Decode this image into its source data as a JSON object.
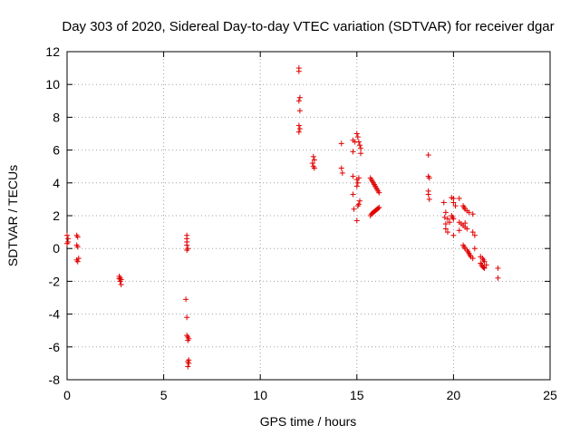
{
  "chart_data": {
    "type": "scatter",
    "title": "Day 303 of 2020, Sidereal Day-to-day VTEC variation (SDTVAR) for receiver dgar",
    "xlabel": "GPS time / hours",
    "ylabel": "SDTVAR / TECUs",
    "xlim": [
      0,
      25
    ],
    "ylim": [
      -8,
      12
    ],
    "xticks": [
      0,
      5,
      10,
      15,
      20,
      25
    ],
    "yticks": [
      -8,
      -6,
      -4,
      -2,
      0,
      2,
      4,
      6,
      8,
      10,
      12
    ],
    "grid": true,
    "marker": "+",
    "color": "#e00000",
    "series": [
      {
        "name": "dgar",
        "points": [
          [
            0.0,
            0.8
          ],
          [
            0.05,
            0.6
          ],
          [
            0.05,
            0.4
          ],
          [
            0.0,
            0.3
          ],
          [
            0.5,
            0.8
          ],
          [
            0.55,
            0.7
          ],
          [
            0.5,
            0.2
          ],
          [
            0.55,
            0.1
          ],
          [
            0.5,
            -0.7
          ],
          [
            0.55,
            -0.8
          ],
          [
            0.6,
            -0.6
          ],
          [
            2.7,
            -1.7
          ],
          [
            2.75,
            -1.8
          ],
          [
            2.8,
            -1.9
          ],
          [
            2.75,
            -2.0
          ],
          [
            2.8,
            -2.2
          ],
          [
            2.7,
            -1.85
          ],
          [
            6.2,
            0.8
          ],
          [
            6.2,
            0.6
          ],
          [
            6.2,
            0.4
          ],
          [
            6.2,
            0.2
          ],
          [
            6.25,
            0.0
          ],
          [
            6.2,
            -0.1
          ],
          [
            6.15,
            -3.1
          ],
          [
            6.2,
            -4.2
          ],
          [
            6.2,
            -5.3
          ],
          [
            6.25,
            -5.4
          ],
          [
            6.3,
            -5.5
          ],
          [
            6.25,
            -5.6
          ],
          [
            6.3,
            -6.8
          ],
          [
            6.25,
            -6.9
          ],
          [
            6.3,
            -7.0
          ],
          [
            6.25,
            -7.2
          ],
          [
            12.0,
            11.0
          ],
          [
            12.0,
            10.8
          ],
          [
            12.05,
            9.2
          ],
          [
            12.0,
            9.0
          ],
          [
            12.05,
            8.4
          ],
          [
            12.0,
            7.5
          ],
          [
            12.05,
            7.3
          ],
          [
            12.0,
            7.1
          ],
          [
            12.75,
            5.6
          ],
          [
            12.8,
            5.4
          ],
          [
            12.7,
            5.2
          ],
          [
            12.75,
            5.0
          ],
          [
            12.8,
            4.9
          ],
          [
            14.2,
            6.4
          ],
          [
            14.2,
            4.9
          ],
          [
            14.25,
            4.6
          ],
          [
            14.8,
            6.6
          ],
          [
            14.9,
            6.5
          ],
          [
            14.8,
            5.9
          ],
          [
            15.0,
            7.0
          ],
          [
            15.05,
            6.8
          ],
          [
            15.1,
            6.5
          ],
          [
            15.15,
            6.3
          ],
          [
            15.2,
            6.1
          ],
          [
            15.2,
            5.8
          ],
          [
            14.8,
            4.4
          ],
          [
            15.0,
            4.2
          ],
          [
            15.05,
            4.0
          ],
          [
            15.0,
            3.8
          ],
          [
            15.1,
            4.3
          ],
          [
            14.8,
            3.3
          ],
          [
            14.85,
            2.4
          ],
          [
            15.05,
            2.6
          ],
          [
            15.1,
            2.7
          ],
          [
            15.15,
            2.9
          ],
          [
            15.0,
            1.7
          ],
          [
            15.7,
            4.3
          ],
          [
            15.75,
            4.2
          ],
          [
            15.8,
            4.1
          ],
          [
            15.85,
            4.0
          ],
          [
            15.9,
            3.9
          ],
          [
            15.95,
            3.8
          ],
          [
            16.0,
            3.7
          ],
          [
            16.05,
            3.6
          ],
          [
            16.1,
            3.5
          ],
          [
            16.15,
            3.4
          ],
          [
            15.7,
            2.0
          ],
          [
            15.75,
            2.1
          ],
          [
            15.8,
            2.15
          ],
          [
            15.85,
            2.2
          ],
          [
            15.9,
            2.25
          ],
          [
            15.95,
            2.3
          ],
          [
            16.0,
            2.35
          ],
          [
            16.05,
            2.4
          ],
          [
            16.1,
            2.45
          ],
          [
            16.15,
            2.5
          ],
          [
            18.7,
            5.7
          ],
          [
            18.7,
            4.4
          ],
          [
            18.75,
            4.3
          ],
          [
            18.7,
            3.5
          ],
          [
            18.7,
            3.3
          ],
          [
            18.75,
            3.0
          ],
          [
            19.5,
            2.8
          ],
          [
            19.6,
            2.2
          ],
          [
            19.55,
            1.9
          ],
          [
            19.7,
            1.8
          ],
          [
            19.8,
            1.6
          ],
          [
            19.9,
            2.0
          ],
          [
            19.95,
            1.9
          ],
          [
            20.0,
            1.8
          ],
          [
            19.6,
            1.5
          ],
          [
            19.6,
            1.2
          ],
          [
            19.9,
            3.1
          ],
          [
            20.0,
            3.05
          ],
          [
            20.3,
            3.05
          ],
          [
            20.0,
            2.8
          ],
          [
            20.1,
            2.6
          ],
          [
            19.7,
            1.0
          ],
          [
            20.0,
            0.8
          ],
          [
            20.3,
            1.6
          ],
          [
            20.4,
            1.5
          ],
          [
            20.5,
            1.4
          ],
          [
            20.6,
            1.3
          ],
          [
            20.7,
            1.2
          ],
          [
            20.6,
            1.55
          ],
          [
            20.3,
            1.1
          ],
          [
            20.5,
            2.6
          ],
          [
            20.55,
            2.5
          ],
          [
            20.6,
            2.4
          ],
          [
            20.7,
            2.3
          ],
          [
            20.8,
            2.2
          ],
          [
            21.0,
            2.1
          ],
          [
            20.5,
            0.2
          ],
          [
            20.55,
            0.1
          ],
          [
            20.6,
            0.0
          ],
          [
            20.7,
            -0.1
          ],
          [
            20.75,
            -0.2
          ],
          [
            20.8,
            -0.3
          ],
          [
            20.85,
            -0.4
          ],
          [
            20.9,
            -0.5
          ],
          [
            21.0,
            -0.6
          ],
          [
            21.1,
            0.0
          ],
          [
            21.0,
            1.0
          ],
          [
            21.1,
            0.8
          ],
          [
            21.4,
            -0.5
          ],
          [
            21.5,
            -0.6
          ],
          [
            21.55,
            -0.7
          ],
          [
            21.6,
            -0.8
          ],
          [
            21.4,
            -0.9
          ],
          [
            21.45,
            -1.0
          ],
          [
            21.5,
            -1.1
          ],
          [
            21.55,
            -1.15
          ],
          [
            21.6,
            -1.2
          ],
          [
            21.7,
            -1.0
          ],
          [
            22.3,
            -1.2
          ],
          [
            22.3,
            -1.8
          ]
        ]
      }
    ]
  }
}
